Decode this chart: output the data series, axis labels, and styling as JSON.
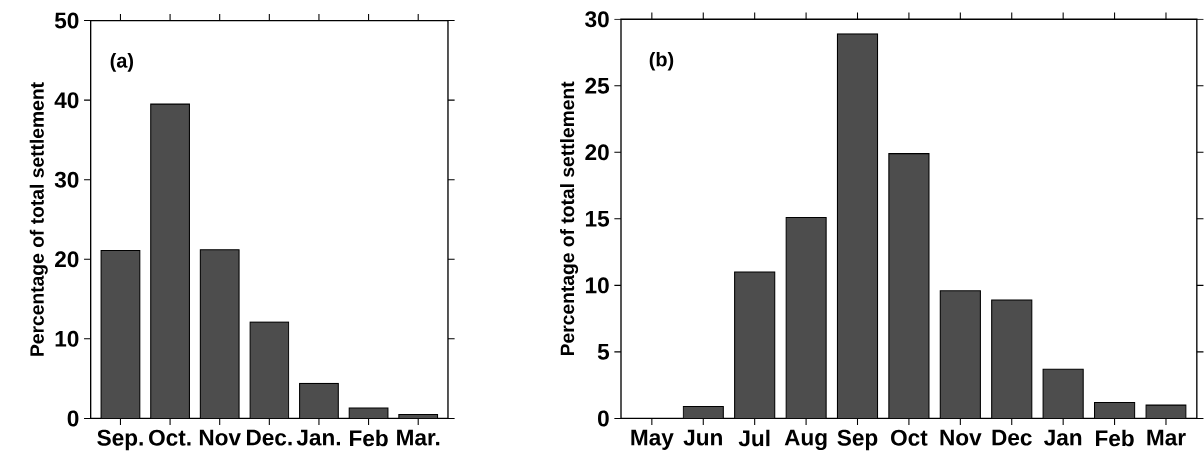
{
  "chart_data": [
    {
      "type": "bar",
      "ylabel": "Percentage of total settlement",
      "annotations": [
        "(a)"
      ],
      "categories": [
        "Sep.",
        "Oct.",
        "Nov",
        "Dec.",
        "Jan.",
        "Feb",
        "Mar."
      ],
      "values": [
        21.1,
        39.5,
        21.2,
        12.1,
        4.4,
        1.3,
        0.5
      ],
      "color": "#4d4d4d",
      "ylim": [
        0,
        50
      ],
      "yticks": [
        0,
        10,
        20,
        30,
        40,
        50
      ],
      "grid": false
    },
    {
      "type": "bar",
      "ylabel": "Percentage of total settlement",
      "annotations": [
        "(b)"
      ],
      "categories": [
        "May",
        "Jun",
        "Jul",
        "Aug",
        "Sep",
        "Oct",
        "Nov",
        "Dec",
        "Jan",
        "Feb",
        "Mar"
      ],
      "values": [
        0,
        0.9,
        11.0,
        15.1,
        28.9,
        19.9,
        9.6,
        8.9,
        3.7,
        1.2,
        1.0
      ],
      "color": "#4d4d4d",
      "ylim": [
        0,
        30
      ],
      "yticks": [
        0,
        5,
        10,
        15,
        20,
        25,
        30
      ],
      "grid": false
    }
  ]
}
